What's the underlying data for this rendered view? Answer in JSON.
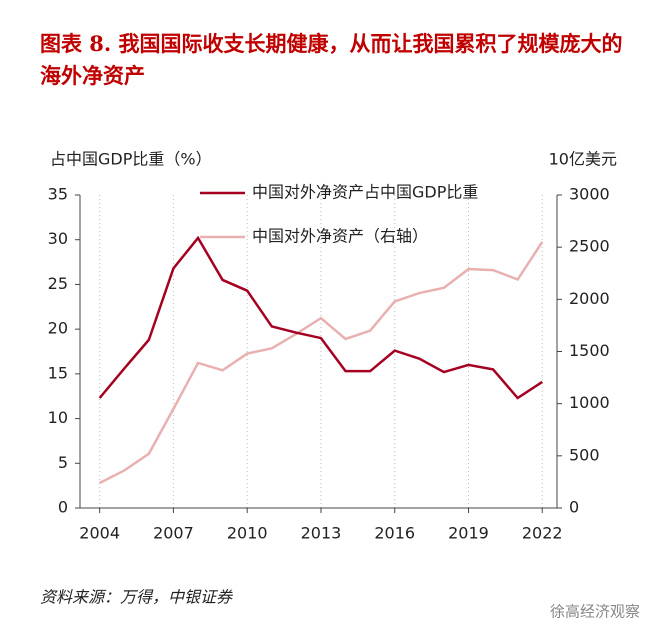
{
  "chart_data": {
    "type": "line",
    "title": "图表 8. 我国国际收支长期健康，从而让我国累积了规模庞大的海外净资产",
    "ylabel": "占中国GDP比重（%）",
    "y2label": "10亿美元",
    "source": "资料来源：万得，中银证券",
    "watermark": "徐高经济观察",
    "x": [
      2004,
      2005,
      2006,
      2007,
      2008,
      2009,
      2010,
      2011,
      2012,
      2013,
      2014,
      2015,
      2016,
      2017,
      2018,
      2019,
      2020,
      2021,
      2022
    ],
    "series": [
      {
        "name": "中国对外净资产占中国GDP比重",
        "color": "#a50021",
        "axis": "y",
        "values": [
          12.3,
          15.6,
          18.8,
          26.8,
          30.2,
          25.5,
          24.3,
          20.3,
          19.6,
          19.0,
          15.3,
          15.3,
          17.6,
          16.7,
          15.2,
          16.0,
          15.5,
          12.3,
          14.1
        ]
      },
      {
        "name": "中国对外净资产（右轴）",
        "color": "#eab0b0",
        "axis": "y2",
        "values": [
          240,
          360,
          520,
          950,
          1390,
          1320,
          1480,
          1530,
          1670,
          1820,
          1620,
          1700,
          1980,
          2060,
          2110,
          2290,
          2280,
          2190,
          2550
        ]
      }
    ],
    "xlim": [
      2003.2,
      2022.6
    ],
    "xticks": [
      2004,
      2007,
      2010,
      2013,
      2016,
      2019,
      2022
    ],
    "ylim": [
      0,
      35
    ],
    "yticks": [
      0,
      5,
      10,
      15,
      20,
      25,
      30,
      35
    ],
    "y2lim": [
      0,
      3000
    ],
    "y2ticks": [
      0,
      500,
      1000,
      1500,
      2000,
      2500,
      3000
    ],
    "grid": true
  }
}
